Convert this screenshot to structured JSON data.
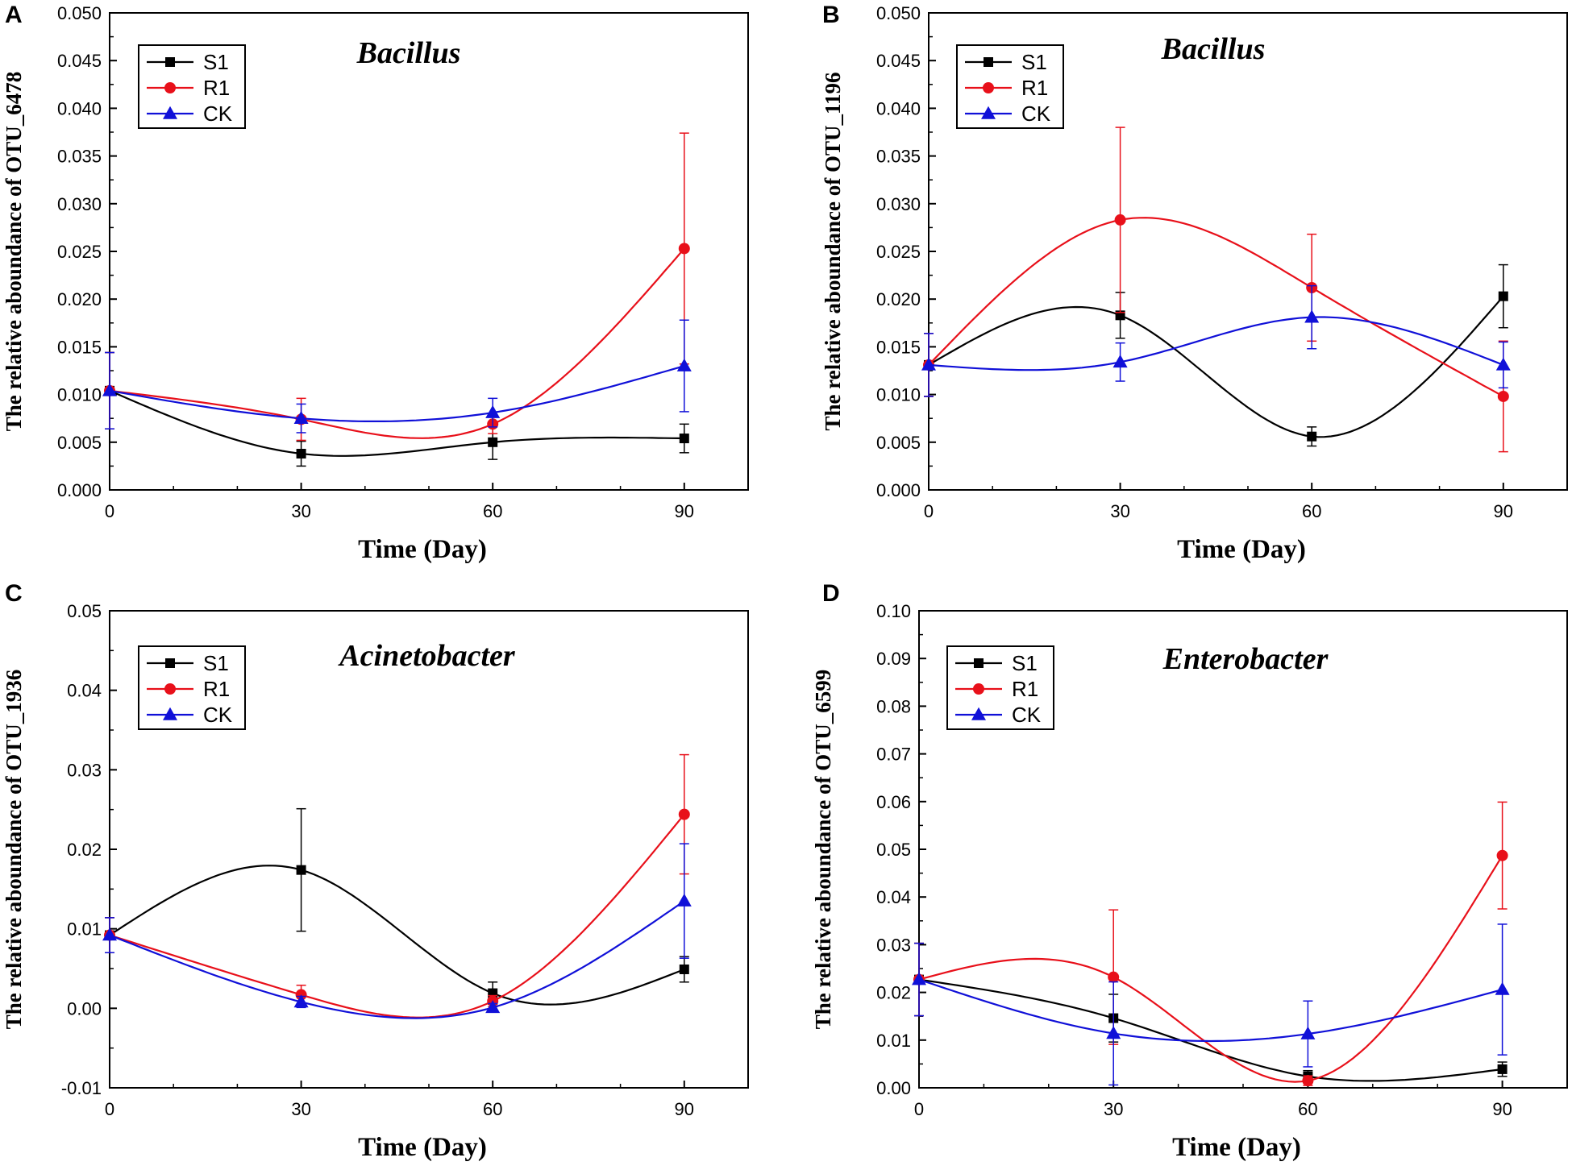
{
  "colors": {
    "S1": "#000000",
    "R1": "#e8101a",
    "CK": "#1010d8"
  },
  "chart_data": [
    {
      "panel": "A",
      "type": "line",
      "title": "Bacillus",
      "xlabel": "Time (Day)",
      "ylabel": "The relative aboundance of OTU_6478",
      "x": [
        0,
        30,
        60,
        90
      ],
      "xlim": [
        0,
        100
      ],
      "xticks": [
        "0",
        "30",
        "60",
        "90"
      ],
      "ylim": [
        0,
        0.05
      ],
      "yticks": [
        "0.000",
        "0.005",
        "0.010",
        "0.015",
        "0.020",
        "0.025",
        "0.030",
        "0.035",
        "0.040",
        "0.045",
        "0.050"
      ],
      "legend": [
        "S1",
        "R1",
        "CK"
      ],
      "series": [
        {
          "name": "S1",
          "values": [
            0.0104,
            0.0038,
            0.005,
            0.0054
          ],
          "errors": [
            0.004,
            0.0013,
            0.0018,
            0.0015
          ],
          "marker": "square"
        },
        {
          "name": "R1",
          "values": [
            0.0104,
            0.0074,
            0.0069,
            0.0253
          ],
          "errors": [
            0.004,
            0.0022,
            0.001,
            0.0121
          ],
          "marker": "circle"
        },
        {
          "name": "CK",
          "values": [
            0.0104,
            0.0075,
            0.0081,
            0.013
          ],
          "errors": [
            0.004,
            0.0015,
            0.0015,
            0.0048
          ],
          "marker": "triangle"
        }
      ]
    },
    {
      "panel": "B",
      "type": "line",
      "title": "Bacillus",
      "xlabel": "Time (Day)",
      "ylabel": "The relative aboundance of OTU_1196",
      "x": [
        0,
        30,
        60,
        90
      ],
      "xlim": [
        0,
        100
      ],
      "xticks": [
        "0",
        "30",
        "60",
        "90"
      ],
      "ylim": [
        0,
        0.05
      ],
      "yticks": [
        "0.000",
        "0.005",
        "0.010",
        "0.015",
        "0.020",
        "0.025",
        "0.030",
        "0.035",
        "0.040",
        "0.045",
        "0.050"
      ],
      "legend": [
        "S1",
        "R1",
        "CK"
      ],
      "series": [
        {
          "name": "S1",
          "values": [
            0.0131,
            0.0183,
            0.0056,
            0.0203
          ],
          "errors": [
            0.0033,
            0.0024,
            0.001,
            0.0033
          ],
          "marker": "square"
        },
        {
          "name": "R1",
          "values": [
            0.0131,
            0.0283,
            0.0212,
            0.0098
          ],
          "errors": [
            0.0033,
            0.0097,
            0.0056,
            0.0058
          ],
          "marker": "circle"
        },
        {
          "name": "CK",
          "values": [
            0.0131,
            0.0134,
            0.0181,
            0.0131
          ],
          "errors": [
            0.0033,
            0.002,
            0.0033,
            0.0024
          ],
          "marker": "triangle"
        }
      ]
    },
    {
      "panel": "C",
      "type": "line",
      "title": "Acinetobacter",
      "xlabel": "Time (Day)",
      "ylabel": "The relative aboundance of OTU_1936",
      "x": [
        0,
        30,
        60,
        90
      ],
      "xlim": [
        0,
        100
      ],
      "xticks": [
        "0",
        "30",
        "60",
        "90"
      ],
      "ylim": [
        -0.01,
        0.05
      ],
      "yticks": [
        "-0.01",
        "0.00",
        "0.01",
        "0.02",
        "0.03",
        "0.04",
        "0.05"
      ],
      "legend": [
        "S1",
        "R1",
        "CK"
      ],
      "series": [
        {
          "name": "S1",
          "values": [
            0.0092,
            0.0174,
            0.0019,
            0.0049
          ],
          "errors": [
            0.0022,
            0.0077,
            0.0014,
            0.0016
          ],
          "marker": "square"
        },
        {
          "name": "R1",
          "values": [
            0.0092,
            0.0017,
            0.0009,
            0.0244
          ],
          "errors": [
            0.0022,
            0.0012,
            0.0007,
            0.0075
          ],
          "marker": "circle"
        },
        {
          "name": "CK",
          "values": [
            0.0092,
            0.0008,
            0.0001,
            0.0135
          ],
          "errors": [
            0.0022,
            0.0007,
            0.0005,
            0.0072
          ],
          "marker": "triangle"
        }
      ]
    },
    {
      "panel": "D",
      "type": "line",
      "title": "Enterobacter",
      "xlabel": "Time (Day)",
      "ylabel": "The relative aboundance of OTU_6599",
      "x": [
        0,
        30,
        60,
        90
      ],
      "xlim": [
        0,
        100
      ],
      "xticks": [
        "0",
        "30",
        "60",
        "90"
      ],
      "ylim": [
        0,
        0.1
      ],
      "yticks": [
        "0.00",
        "0.01",
        "0.02",
        "0.03",
        "0.04",
        "0.05",
        "0.06",
        "0.07",
        "0.08",
        "0.09",
        "0.10"
      ],
      "legend": [
        "S1",
        "R1",
        "CK"
      ],
      "series": [
        {
          "name": "S1",
          "values": [
            0.0227,
            0.0146,
            0.0024,
            0.0039
          ],
          "errors": [
            0.0076,
            0.005,
            0.0012,
            0.0015
          ],
          "marker": "square"
        },
        {
          "name": "R1",
          "values": [
            0.0227,
            0.0232,
            0.0015,
            0.0487
          ],
          "errors": [
            0.0076,
            0.0141,
            0.001,
            0.0112
          ],
          "marker": "circle"
        },
        {
          "name": "CK",
          "values": [
            0.0227,
            0.0114,
            0.0113,
            0.0206
          ],
          "errors": [
            0.0076,
            0.0108,
            0.0069,
            0.0137
          ],
          "marker": "triangle"
        }
      ]
    }
  ]
}
